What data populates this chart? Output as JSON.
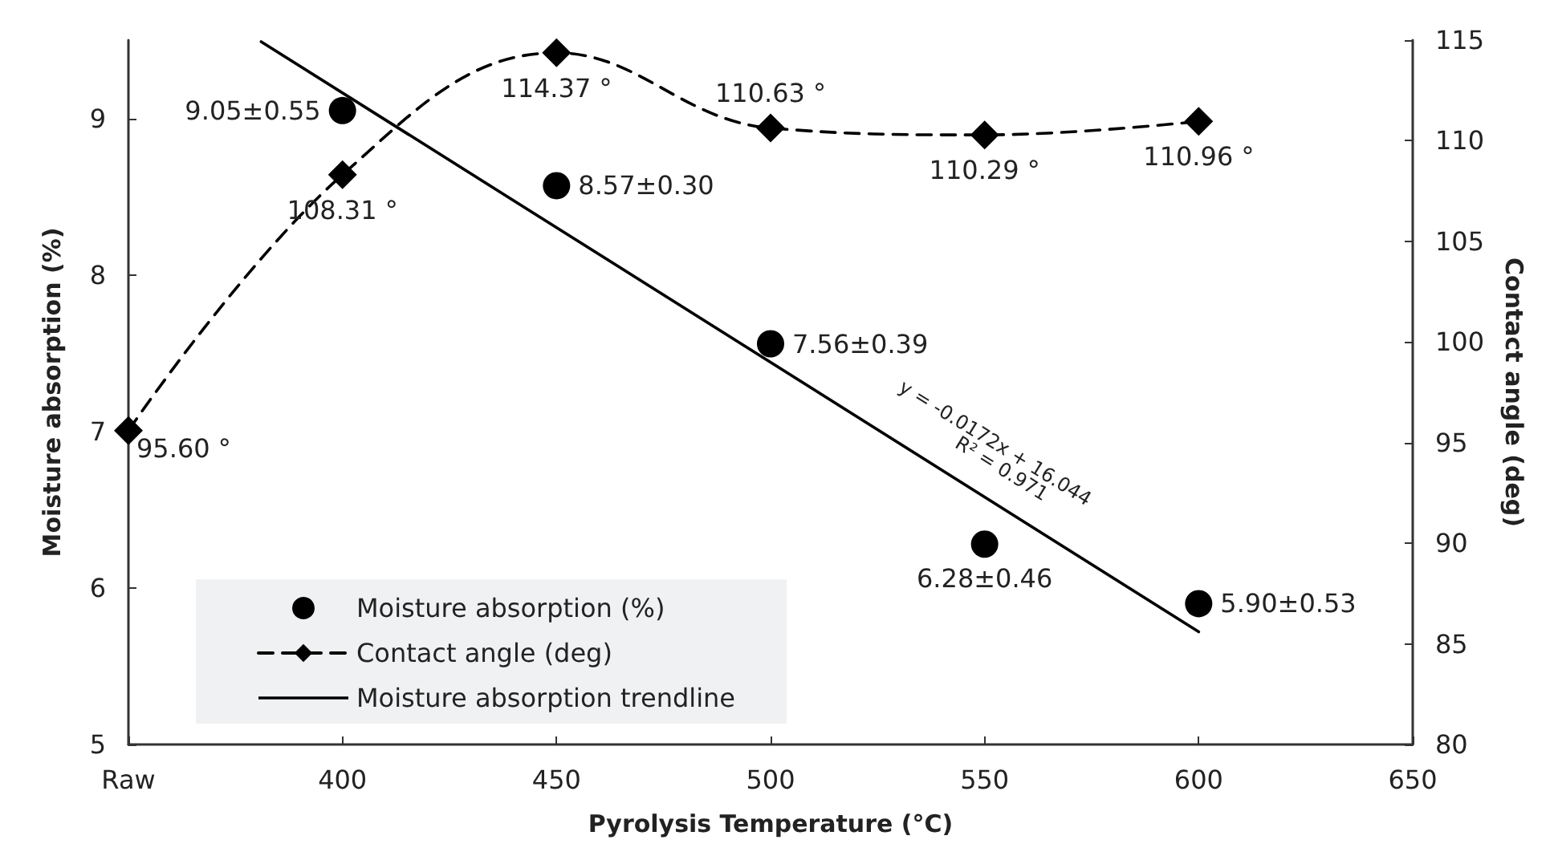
{
  "chart_data": {
    "type": "scatter",
    "xlabel": "Pyrolysis Temperature (°C)",
    "ylabel": "Moisture absorption (%)",
    "y2label": "Contact angle (deg)",
    "xlim": [
      350,
      650
    ],
    "xticks": [
      {
        "value": 350,
        "label": "Raw"
      },
      400,
      450,
      500,
      550,
      600,
      650
    ],
    "ylim": [
      5,
      9.5
    ],
    "yticks": [
      5,
      6,
      7,
      8,
      9
    ],
    "y2lim": [
      80,
      115
    ],
    "y2ticks": [
      80,
      85,
      90,
      95,
      100,
      105,
      110,
      115
    ],
    "grid": false,
    "legend": "bottom left",
    "series": [
      {
        "name": "Moisture absorption (%)",
        "marker": "circle",
        "color": "#000000",
        "x": [
          400,
          450,
          500,
          550,
          600
        ],
        "values": [
          9.05,
          8.57,
          7.56,
          6.28,
          5.9
        ],
        "value_labels": [
          "9.05±0.55",
          "8.57±0.30",
          "7.56±0.39",
          "6.28±0.46",
          "5.90±0.53"
        ]
      },
      {
        "name": "Contact angle (deg)",
        "type": "line",
        "axis": "y2",
        "marker": "diamond",
        "line_style": "dashed",
        "color": "#000000",
        "x": [
          350,
          400,
          450,
          500,
          550,
          600
        ],
        "values": [
          95.6,
          108.31,
          114.37,
          110.63,
          110.29,
          110.96
        ],
        "value_labels": [
          "95.60 °",
          "108.31 °",
          "114.37 °",
          "110.63 °",
          "110.29 °",
          "110.96 °"
        ]
      },
      {
        "name": "Moisture absorption trendline",
        "type": "line",
        "marker": "none",
        "line_style": "solid",
        "color": "#000000",
        "x": [
          381,
          600
        ],
        "values": [
          9.49,
          5.72
        ]
      }
    ],
    "annotations": [
      "y = -0.0172x + 16.044",
      "R² = 0.971"
    ]
  }
}
